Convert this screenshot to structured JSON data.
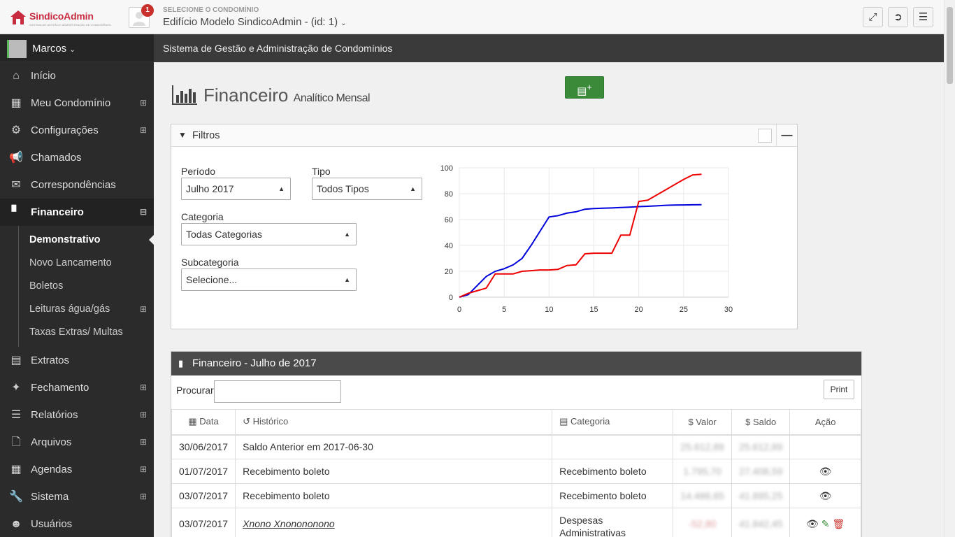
{
  "app": {
    "logo": "SindicoAdmin",
    "logo_sub": "SISTEMA DE GESTÃO E ADMINISTRAÇÃO DE CONDOMÍNIOS",
    "notifications": "1"
  },
  "condo": {
    "label": "SELECIONE O CONDOMÍNIO",
    "name": "Edifício Modelo SindicoAdmin - (id: 1)"
  },
  "user": {
    "name": "Marcos"
  },
  "subtitle_bar": "Sistema de Gestão e Administração de Condomínios",
  "sidebar": {
    "items": [
      {
        "label": "Início",
        "icon": "home-icon"
      },
      {
        "label": "Meu Condomínio",
        "icon": "building-icon",
        "expandable": true
      },
      {
        "label": "Configurações",
        "icon": "gears-icon",
        "expandable": true
      },
      {
        "label": "Chamados",
        "icon": "bullhorn-icon"
      },
      {
        "label": "Correspondências",
        "icon": "envelope-icon"
      },
      {
        "label": "Financeiro",
        "icon": "bar-chart-icon",
        "expanded": true
      }
    ],
    "sub_items": [
      {
        "label": "Demonstrativo",
        "current": true
      },
      {
        "label": "Novo Lancamento"
      },
      {
        "label": "Boletos"
      },
      {
        "label": "Leituras água/gás",
        "expandable": true
      },
      {
        "label": "Taxas Extras/ Multas"
      }
    ],
    "items_after": [
      {
        "label": "Extratos",
        "icon": "money-icon"
      },
      {
        "label": "Fechamento",
        "icon": "magic-icon",
        "expandable": true
      },
      {
        "label": "Relatórios",
        "icon": "list-icon",
        "expandable": true
      },
      {
        "label": "Arquivos",
        "icon": "files-icon",
        "expandable": true
      },
      {
        "label": "Agendas",
        "icon": "calendar-icon",
        "expandable": true
      },
      {
        "label": "Sistema",
        "icon": "wrench-icon",
        "expandable": true
      },
      {
        "label": "Usuários",
        "icon": "users-icon"
      }
    ]
  },
  "page": {
    "title": "Financeiro",
    "subtitle": "Analítico Mensal"
  },
  "filters": {
    "title": "Filtros",
    "periodo": {
      "label": "Período",
      "value": "Julho 2017"
    },
    "tipo": {
      "label": "Tipo",
      "value": "Todos Tipos"
    },
    "categoria": {
      "label": "Categoria",
      "value": "Todas Categorias"
    },
    "subcategoria": {
      "label": "Subcategoria",
      "value": "Selecione..."
    }
  },
  "chart_data": {
    "type": "line",
    "xlim": [
      0,
      30
    ],
    "ylim": [
      0,
      100
    ],
    "xticks": [
      0,
      5,
      10,
      15,
      20,
      25,
      30
    ],
    "yticks": [
      0,
      20,
      40,
      60,
      80,
      100
    ],
    "grid": true,
    "series": [
      {
        "color": "#0000dd",
        "x": [
          0,
          1,
          2,
          3,
          4,
          5,
          6,
          7,
          8,
          9,
          10,
          11,
          12,
          13,
          14,
          15,
          16,
          17,
          18,
          19,
          20,
          21,
          22,
          23,
          24,
          25,
          26,
          27
        ],
        "y": [
          0,
          2,
          9,
          16,
          20,
          22,
          25,
          30,
          40,
          51,
          62,
          63,
          65,
          66,
          68,
          68.5,
          68.8,
          69,
          69.3,
          69.6,
          70,
          70.3,
          70.6,
          71,
          71.2,
          71.3,
          71.4,
          71.5
        ]
      },
      {
        "color": "#ee0000",
        "x": [
          0,
          1,
          2,
          3,
          4,
          5,
          6,
          7,
          8,
          9,
          10,
          11,
          12,
          13,
          14,
          15,
          16,
          17,
          18,
          19,
          20,
          21,
          22,
          23,
          24,
          25,
          26,
          27
        ],
        "y": [
          0,
          3,
          5,
          7,
          18,
          18,
          18,
          20,
          20.5,
          21,
          21,
          21.5,
          24.5,
          25,
          33.5,
          34,
          34,
          34,
          48,
          48,
          74,
          75,
          79,
          83,
          87,
          91,
          94.5,
          95
        ]
      }
    ]
  },
  "fin_table": {
    "title": "Financeiro - Julho de 2017",
    "search_label": "Procurar",
    "print_label": "Print",
    "headers": {
      "data": "Data",
      "historico": "Histórico",
      "categoria": "Categoria",
      "valor": "$ Valor",
      "saldo": "$ Saldo",
      "acao": "Ação"
    },
    "rows": [
      {
        "data": "30/06/2017",
        "historico": "Saldo Anterior em 2017-06-30",
        "categoria": "",
        "valor": "25.612,89",
        "saldo": "25.612,89"
      },
      {
        "data": "01/07/2017",
        "historico": "Recebimento boleto",
        "categoria": "Recebimento boleto",
        "valor": "1.795,70",
        "saldo": "27.408,59"
      },
      {
        "data": "03/07/2017",
        "historico": "Recebimento boleto",
        "categoria": "Recebimento boleto",
        "valor": "14.486,65",
        "saldo": "41.895,25"
      },
      {
        "data": "03/07/2017",
        "historico": "Xnono Xnonononono",
        "categoria": "Despesas Administrativas",
        "valor": "-52,80",
        "saldo": "41.842,45"
      }
    ]
  }
}
